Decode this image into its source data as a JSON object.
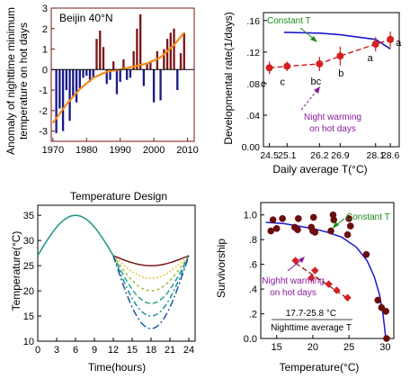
{
  "chart_data": [
    {
      "panel": "top-left",
      "type": "bar",
      "title": "Beijin 40°N",
      "ylabel": "Anomaly of nighttime minimum temperature on hot days",
      "xlim": [
        1969.5,
        2012
      ],
      "ylim": [
        -3.5,
        3
      ],
      "xticks": [
        1970,
        1980,
        1990,
        2000,
        2010
      ],
      "yticks": [
        -3,
        -2,
        -1,
        0,
        1,
        2,
        3
      ],
      "colors": {
        "positive": "#7b1616",
        "negative": "#1a1a8c",
        "trend": "#f28c1a"
      },
      "bars": {
        "years": [
          1971,
          1972,
          1973,
          1974,
          1975,
          1976,
          1977,
          1978,
          1979,
          1980,
          1981,
          1982,
          1983,
          1984,
          1985,
          1986,
          1987,
          1988,
          1989,
          1990,
          1991,
          1992,
          1993,
          1994,
          1995,
          1996,
          1997,
          1998,
          1999,
          2000,
          2001,
          2002,
          2003,
          2004,
          2005,
          2006,
          2007,
          2008,
          2009
        ],
        "values": [
          -3.1,
          -1.9,
          -3.0,
          -1.0,
          -2.5,
          -1.3,
          -1.6,
          -0.9,
          -0.4,
          -0.3,
          -0.6,
          -0.4,
          1.5,
          1.9,
          1.1,
          -0.7,
          -0.5,
          0.4,
          -1.2,
          -0.6,
          0.5,
          -0.5,
          -0.4,
          0.9,
          2.0,
          2.7,
          -0.8,
          0.3,
          0.4,
          -1.6,
          0.9,
          -1.5,
          1.0,
          1.5,
          1.8,
          2.0,
          -1.0,
          0.8,
          1.8
        ]
      },
      "trend": {
        "x": [
          1970,
          1974,
          1978,
          1982,
          1986,
          1990,
          1994,
          1998,
          2002,
          2006,
          2009
        ],
        "y": [
          -2.6,
          -1.7,
          -0.95,
          -0.4,
          -0.1,
          0.0,
          0.15,
          0.3,
          0.6,
          1.2,
          1.8
        ]
      }
    },
    {
      "panel": "top-right",
      "type": "scatter",
      "xlabel": "Daily average T(°C)",
      "ylabel": "Developmental rate(1/days)",
      "xlim": [
        24.3,
        28.9
      ],
      "ylim": [
        0,
        0.17
      ],
      "xticks": [
        24.5,
        25.1,
        26.2,
        26.9,
        28.1,
        28.6
      ],
      "yticks": [
        0,
        0.04,
        0.08,
        0.12,
        0.16
      ],
      "ytick_labels": [
        "0.00",
        ".04",
        ".08",
        ".12",
        ".16"
      ],
      "series": [
        {
          "name": "Constant T",
          "x": [
            25.0,
            26.2,
            26.9,
            28.1,
            28.6
          ],
          "y": [
            0.145,
            0.144,
            0.142,
            0.136,
            0.124
          ],
          "color": "#1a1acc"
        },
        {
          "name": "Night warming on hot days",
          "x": [
            24.5,
            25.1,
            26.2,
            26.9,
            28.1,
            28.6
          ],
          "y": [
            0.1,
            0.102,
            0.105,
            0.115,
            0.13,
            0.136
          ],
          "err": [
            0.008,
            0.006,
            0.009,
            0.012,
            0.009,
            0.01
          ],
          "labels": [
            "c",
            "c",
            "bc",
            "b",
            "a",
            "a"
          ],
          "color": "#cc1a1a"
        }
      ]
    },
    {
      "panel": "bottom-left",
      "type": "line",
      "title": "Temperature Design",
      "xlabel": "Time(hours)",
      "ylabel": "Temperature(°C)",
      "xlim": [
        0,
        25
      ],
      "ylim": [
        10,
        37
      ],
      "xticks": [
        0,
        3,
        6,
        9,
        12,
        15,
        18,
        21,
        24
      ],
      "yticks": [
        10,
        15,
        20,
        25,
        30,
        35
      ],
      "day_profile": {
        "hours": [
          0,
          6,
          12
        ],
        "temps": [
          27,
          35,
          27
        ]
      },
      "night_minima": [
        25,
        22.5,
        20,
        17.5,
        15,
        12.5
      ],
      "colors": [
        "#7b1616",
        "#e8c43a",
        "#9bbf3a",
        "#2aa68a",
        "#1a8aa0",
        "#1a5aa0"
      ]
    },
    {
      "panel": "bottom-right",
      "type": "scatter",
      "xlabel": "Temperature(°C)",
      "ylabel": "Survivorship",
      "xlim": [
        12.8,
        31.2
      ],
      "ylim": [
        0,
        1.1
      ],
      "xticks": [
        15,
        20,
        25,
        30
      ],
      "yticks": [
        0,
        0.2,
        0.4,
        0.6,
        0.8,
        1.0
      ],
      "ytick_labels": [
        "0.0",
        ".2",
        ".4",
        ".6",
        ".8",
        "1.0"
      ],
      "series": [
        {
          "name": "Constant T",
          "x": [
            14.2,
            14.5,
            15.0,
            15.8,
            17.5,
            17.9,
            18.0,
            19.8,
            20.0,
            20.1,
            20.3,
            22.5,
            22.8,
            22.9,
            24.8,
            25.0,
            25.2,
            27.4,
            29.0,
            29.5,
            30.1,
            30.2
          ],
          "y": [
            0.87,
            0.96,
            0.89,
            0.97,
            0.9,
            0.88,
            0.97,
            0.9,
            0.87,
            0.98,
            0.86,
            0.87,
            1.0,
            0.96,
            0.84,
            0.97,
            0.91,
            0.68,
            0.31,
            0.25,
            0.22,
            0.0
          ],
          "color": "#6b0d0d"
        },
        {
          "name": "Night warming on hot days",
          "x": [
            17.6,
            19.8,
            20.3,
            22.2,
            23.3,
            24.8
          ],
          "y": [
            0.63,
            0.49,
            0.55,
            0.44,
            0.39,
            0.33
          ],
          "color": "#d62020"
        }
      ],
      "fit_curve": {
        "x": [
          13.5,
          16,
          18,
          20,
          22,
          24,
          26,
          27.5,
          28.5,
          29.2,
          29.7,
          30.05
        ],
        "y": [
          0.94,
          0.93,
          0.91,
          0.89,
          0.86,
          0.82,
          0.74,
          0.63,
          0.5,
          0.36,
          0.2,
          0.02
        ]
      },
      "trend": {
        "x": [
          17.6,
          24.9
        ],
        "y": [
          0.61,
          0.32
        ]
      },
      "annotation": {
        "range": "17.7-25.8 °C",
        "label": "Nighttime average T"
      }
    }
  ],
  "texts": {
    "tl_title": "Beijin 40°N",
    "tl_ylabel_1": "Anomaly of nighttime minimum",
    "tl_ylabel_2": "temperature on hot days",
    "tr_ylabel": "Developmental rate(1/days)",
    "tr_xlabel": "Daily average T(°C)",
    "tr_constant": "Constant T",
    "tr_night_1": "Night warming",
    "tr_night_2": "on hot days",
    "bl_title": "Temperature Design",
    "bl_ylabel": "Temperature(°C)",
    "bl_xlabel": "Time(hours)",
    "br_ylabel": "Survivorship",
    "br_xlabel": "Temperature(°C)",
    "br_constant": "Constant T",
    "br_night_1": "Nighht warming",
    "br_night_2": "on hot days",
    "br_range": "17.7-25.8 °C",
    "br_range_label": "Nighttime average T"
  }
}
